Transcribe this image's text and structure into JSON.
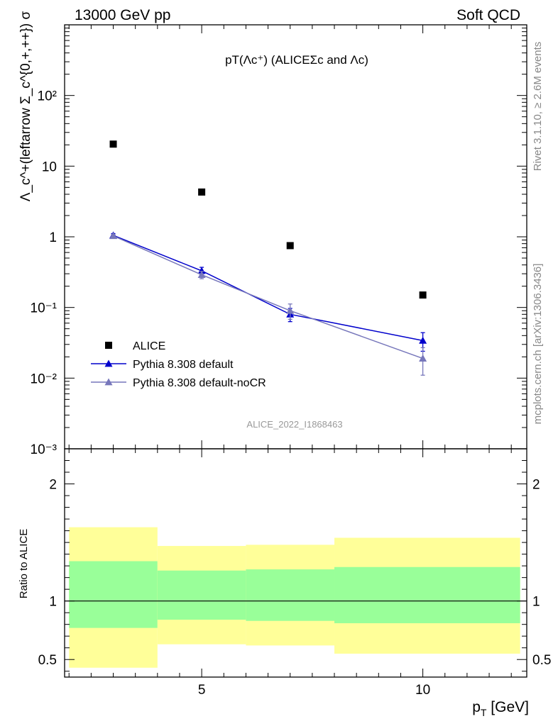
{
  "header": {
    "left": "13000 GeV pp",
    "right": "Soft QCD"
  },
  "side_labels": {
    "rivet": "Rivet 3.1.10, ≥ 2.6M events",
    "mcplots": "mcplots.cern.ch [arXiv:1306.3436]"
  },
  "chart_data": [
    {
      "type": "scatter",
      "title": "pT(Λc⁺) (ALICEΣc and Λc)",
      "ylabel": "Λ_c^+(leftarrow Σ_c^{0,+,++}) σ",
      "watermark": "ALICE_2022_I1868463",
      "xlabel": "p_T [GeV]",
      "xlim": [
        1.9,
        12.35
      ],
      "ylim": [
        0.001,
        1000
      ],
      "yscale": "log",
      "yticks": [
        {
          "value": 0.001,
          "label": "10⁻³"
        },
        {
          "value": 0.01,
          "label": "10⁻²"
        },
        {
          "value": 0.1,
          "label": "10⁻¹"
        },
        {
          "value": 1,
          "label": "1"
        },
        {
          "value": 10,
          "label": "10"
        },
        {
          "value": 100,
          "label": "10²"
        }
      ],
      "legend_position": "lower-left",
      "series": [
        {
          "name": "ALICE",
          "color": "#000000",
          "marker": "square",
          "x": [
            3,
            5,
            7,
            10
          ],
          "y": [
            20.5,
            4.3,
            0.75,
            0.15
          ]
        },
        {
          "name": "Pythia 8.308 default",
          "color": "#0000cc",
          "marker": "triangle",
          "x": [
            3,
            5,
            7,
            10
          ],
          "y": [
            1.05,
            0.33,
            0.08,
            0.034
          ],
          "yerr": [
            0.06,
            0.04,
            0.017,
            0.01
          ]
        },
        {
          "name": "Pythia 8.308 default-noCR",
          "color": "#7777bb",
          "marker": "triangle",
          "x": [
            3,
            5,
            7,
            10
          ],
          "y": [
            1.03,
            0.29,
            0.09,
            0.019
          ],
          "yerr": [
            0.05,
            0.035,
            0.022,
            0.008
          ]
        }
      ]
    },
    {
      "type": "area",
      "ylabel": "Ratio to ALICE",
      "xlabel": "p_T [GeV]",
      "xlim": [
        1.9,
        12.35
      ],
      "ylim": [
        0.35,
        2.3
      ],
      "xticks": [
        {
          "value": 5,
          "label": "5"
        },
        {
          "value": 10,
          "label": "10"
        }
      ],
      "yticks": [
        {
          "value": 0.5,
          "label": "0.5"
        },
        {
          "value": 1,
          "label": "1"
        },
        {
          "value": 2,
          "label": "2"
        }
      ],
      "reference_line": 1,
      "bands": [
        {
          "x0": 2,
          "x1": 4,
          "stat": [
            0.77,
            1.34
          ],
          "total": [
            0.43,
            1.63
          ]
        },
        {
          "x0": 4,
          "x1": 6,
          "stat": [
            0.84,
            1.26
          ],
          "total": [
            0.63,
            1.47
          ]
        },
        {
          "x0": 6,
          "x1": 8,
          "stat": [
            0.83,
            1.27
          ],
          "total": [
            0.62,
            1.48
          ]
        },
        {
          "x0": 8,
          "x1": 12.2,
          "stat": [
            0.81,
            1.29
          ],
          "total": [
            0.55,
            1.54
          ]
        }
      ],
      "band_colors": {
        "stat": "#99ff99",
        "total": "#ffff99"
      }
    }
  ]
}
